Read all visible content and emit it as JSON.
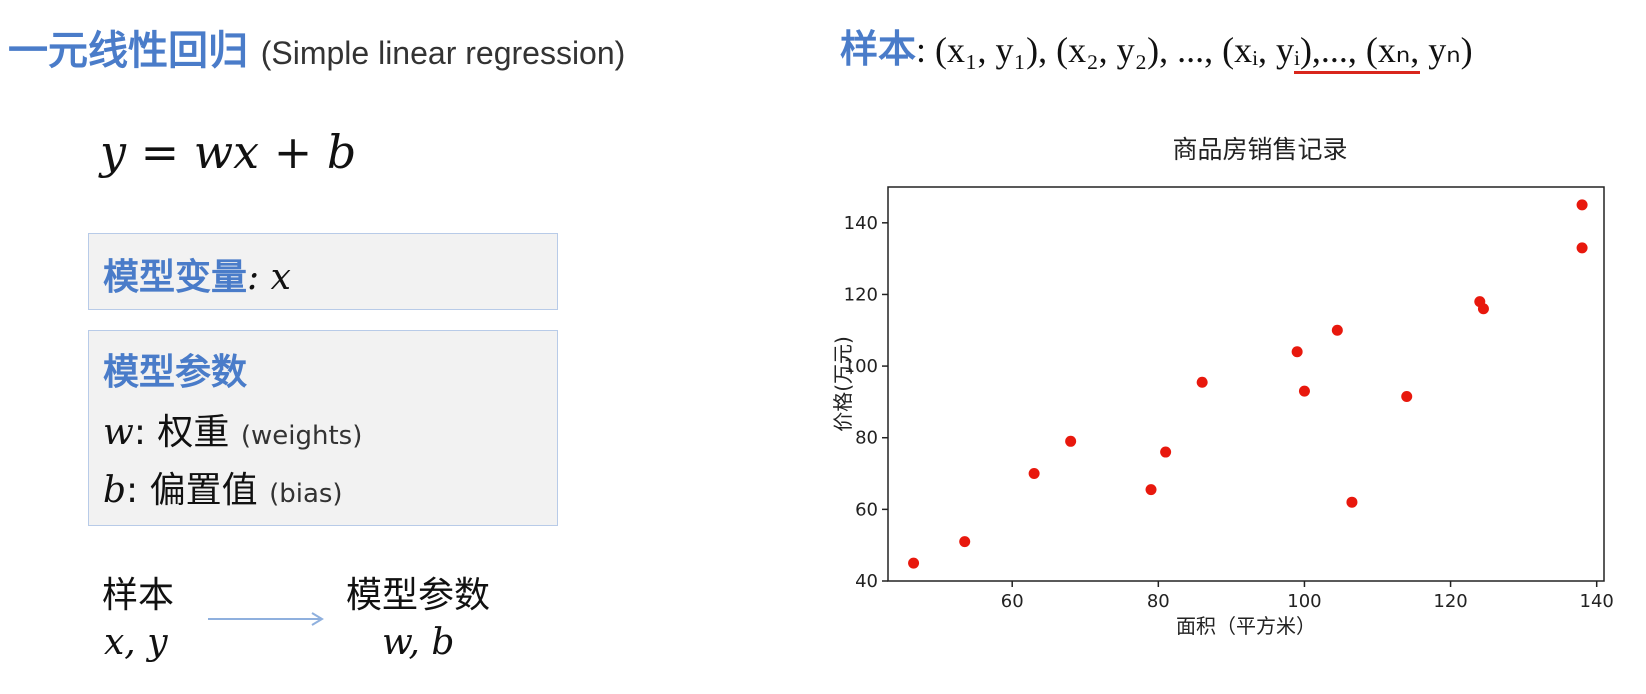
{
  "header": {
    "title_cn": "一元线性回归",
    "title_en": "(Simple linear regression)",
    "samples_label": "样本",
    "samples_seq": ": (x₁, y₁), (x₂, y₂), ..., (xᵢ, yᵢ),..., (xₙ, yₙ)"
  },
  "equation": "y = wx + b",
  "box_variable": {
    "label": "模型变量",
    "value": ": x"
  },
  "box_params": {
    "title": "模型参数",
    "w_symbol": "w",
    "w_text": ": 权重",
    "w_en": "(weights)",
    "b_symbol": "b",
    "b_text": ": 偏置值",
    "b_en": "(bias)"
  },
  "flow": {
    "left_label": "样本",
    "left_vars": "x, y",
    "right_label": "模型参数",
    "right_vars": "w, b"
  },
  "colors": {
    "accent_blue": "#4a7cc9",
    "point_red": "#e8180d",
    "underline_red": "#d9261c"
  },
  "chart_data": {
    "type": "scatter",
    "title": "商品房销售记录",
    "xlabel": "面积（平方米）",
    "ylabel": "价格(万元)",
    "xlim": [
      43,
      141
    ],
    "ylim": [
      40,
      150
    ],
    "xticks": [
      60,
      80,
      100,
      120,
      140
    ],
    "yticks": [
      40,
      60,
      80,
      100,
      120,
      140
    ],
    "points": [
      {
        "x": 46.5,
        "y": 45
      },
      {
        "x": 53.5,
        "y": 51
      },
      {
        "x": 63,
        "y": 70
      },
      {
        "x": 68,
        "y": 79
      },
      {
        "x": 79,
        "y": 65.5
      },
      {
        "x": 81,
        "y": 76
      },
      {
        "x": 86,
        "y": 95.5
      },
      {
        "x": 99,
        "y": 104
      },
      {
        "x": 100,
        "y": 93
      },
      {
        "x": 104.5,
        "y": 110
      },
      {
        "x": 106.5,
        "y": 62
      },
      {
        "x": 114,
        "y": 91.5
      },
      {
        "x": 124,
        "y": 118
      },
      {
        "x": 124.5,
        "y": 116
      },
      {
        "x": 138,
        "y": 145
      },
      {
        "x": 138,
        "y": 133
      }
    ],
    "grid": false
  }
}
